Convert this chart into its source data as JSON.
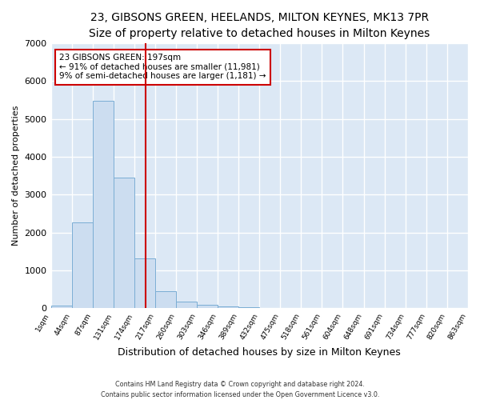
{
  "title": "23, GIBSONS GREEN, HEELANDS, MILTON KEYNES, MK13 7PR",
  "subtitle": "Size of property relative to detached houses in Milton Keynes",
  "xlabel": "Distribution of detached houses by size in Milton Keynes",
  "ylabel": "Number of detached properties",
  "bar_color": "#ccddf0",
  "bar_edge_color": "#7aadd4",
  "background_color": "#dce8f5",
  "fig_background": "#ffffff",
  "grid_color": "#ffffff",
  "annotation_box_color": "#cc0000",
  "vline_color": "#cc0000",
  "property_size": 197,
  "annotation_line1": "23 GIBSONS GREEN: 197sqm",
  "annotation_line2": "← 91% of detached houses are smaller (11,981)",
  "annotation_line3": "9% of semi-detached houses are larger (1,181) →",
  "footer": "Contains HM Land Registry data © Crown copyright and database right 2024.\nContains public sector information licensed under the Open Government Licence v3.0.",
  "bin_edges": [
    1,
    44,
    87,
    131,
    174,
    217,
    260,
    303,
    346,
    389,
    432,
    475,
    518,
    561,
    604,
    648,
    691,
    734,
    777,
    820,
    863
  ],
  "bin_counts": [
    80,
    2270,
    5470,
    3440,
    1320,
    460,
    170,
    90,
    50,
    30,
    10,
    5,
    2,
    1,
    0,
    0,
    0,
    0,
    0,
    0
  ],
  "ylim": [
    0,
    7000
  ],
  "yticks": [
    0,
    1000,
    2000,
    3000,
    4000,
    5000,
    6000,
    7000
  ],
  "title_fontsize": 10,
  "subtitle_fontsize": 9,
  "ylabel_fontsize": 8,
  "xlabel_fontsize": 9
}
